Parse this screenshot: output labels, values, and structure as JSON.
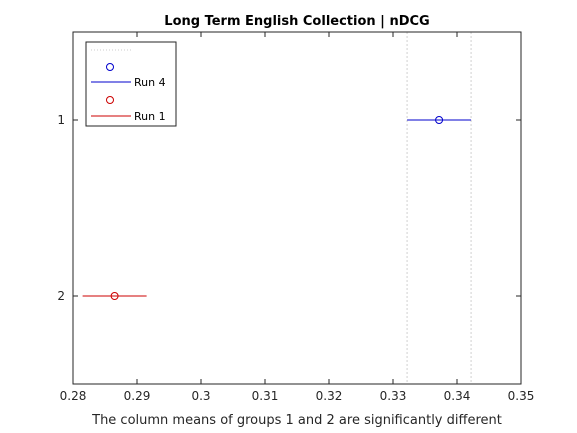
{
  "chart_data": {
    "type": "scatter",
    "title": "Long Term English Collection | nDCG",
    "xlabel": "The column means of groups 1 and 2 are significantly different",
    "ylabel": "",
    "xlim": [
      0.28,
      0.35
    ],
    "x_ticks": [
      "0.28",
      "0.29",
      "0.3",
      "0.31",
      "0.32",
      "0.33",
      "0.34",
      "0.35"
    ],
    "y_categories": [
      "1",
      "2"
    ],
    "series": [
      {
        "name": "Run 4",
        "group": "1",
        "mean": 0.3372,
        "ci": [
          0.3322,
          0.3422
        ],
        "color": "#0000cc"
      },
      {
        "name": "Run 1",
        "group": "2",
        "mean": 0.2865,
        "ci": [
          0.2815,
          0.2915
        ],
        "color": "#cc0000"
      }
    ],
    "reference_lines": [
      0.3322,
      0.3422
    ],
    "legend": {
      "placement": "top-left",
      "entries": [
        {
          "label": "",
          "kind": "dotted-line",
          "color": "#cccccc"
        },
        {
          "label": "",
          "kind": "marker",
          "color": "#0000cc"
        },
        {
          "label": "Run 4",
          "kind": "line",
          "color": "#0000cc"
        },
        {
          "label": "",
          "kind": "marker",
          "color": "#cc0000"
        },
        {
          "label": "Run 1",
          "kind": "line",
          "color": "#cc0000"
        }
      ]
    },
    "grid": false
  }
}
